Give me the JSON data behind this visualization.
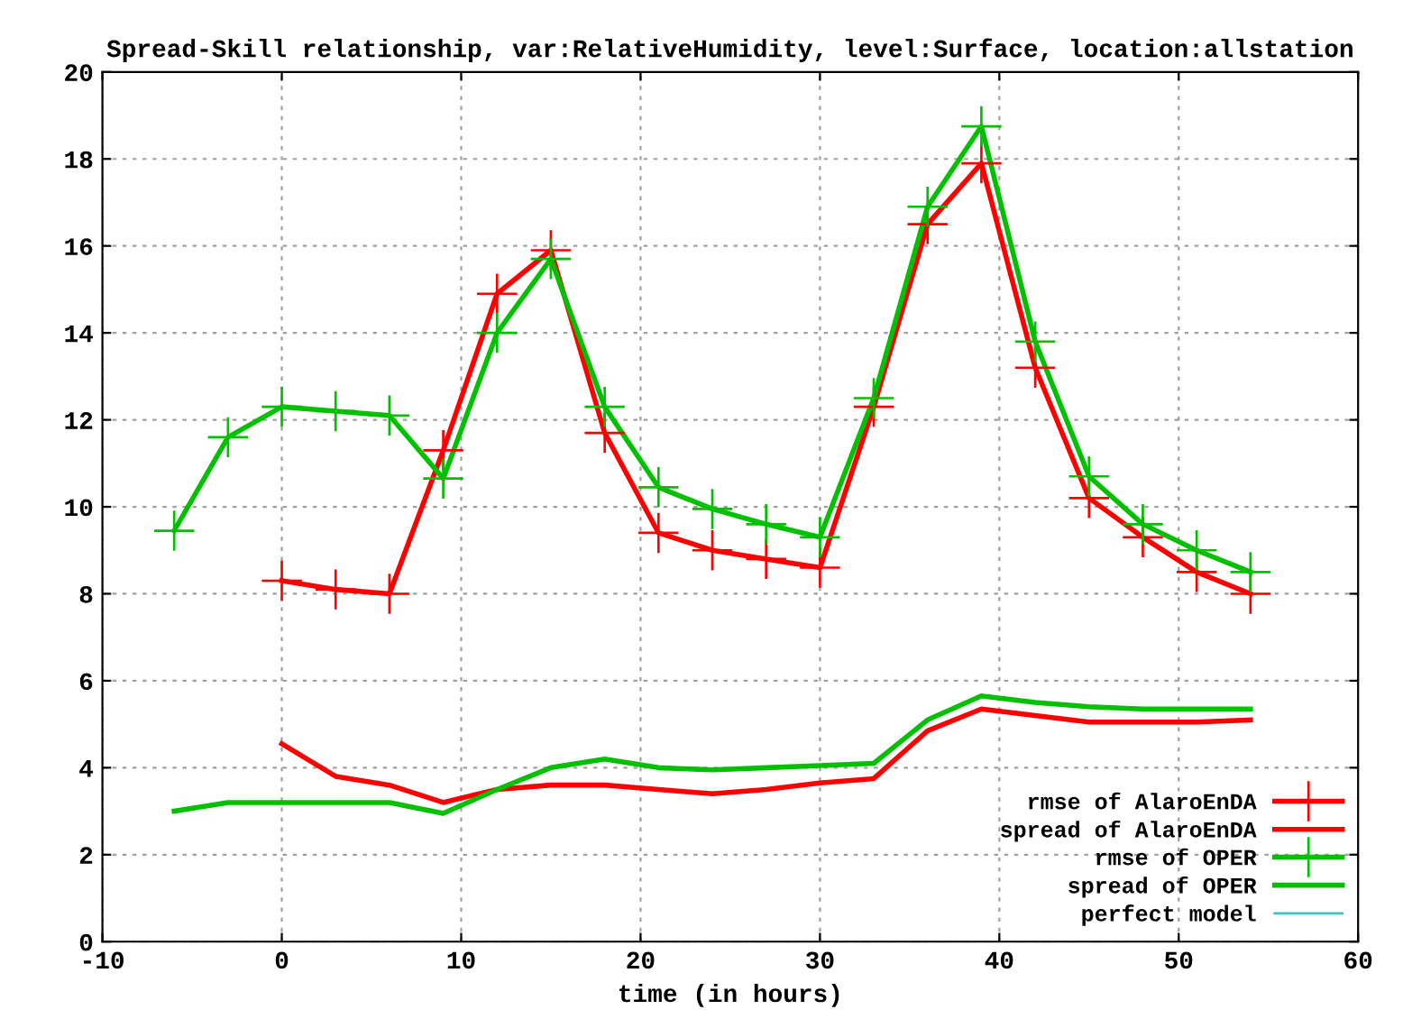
{
  "chart_data": {
    "type": "line",
    "title": "Spread-Skill relationship, var:RelativeHumidity, level:Surface, location:allstation",
    "xlabel": "time (in hours)",
    "xlim": [
      -10,
      60
    ],
    "xticks": [
      -10,
      0,
      10,
      20,
      30,
      40,
      50,
      60
    ],
    "ylim": [
      0,
      20
    ],
    "yticks": [
      0,
      2,
      4,
      6,
      8,
      10,
      12,
      14,
      16,
      18,
      20
    ],
    "grid": true,
    "legend": "bottom right",
    "line_style": "solid",
    "series": [
      {
        "name": "rmse of AlaroEnDA",
        "color": "#ff0000",
        "marker": "cross",
        "x": [
          0,
          3,
          6,
          9,
          12,
          15,
          18,
          21,
          24,
          27,
          30,
          33,
          36,
          39,
          42,
          45,
          48,
          51,
          54
        ],
        "values": [
          8.3,
          8.1,
          8.0,
          11.3,
          14.9,
          15.9,
          11.7,
          9.4,
          9.0,
          8.8,
          8.6,
          12.3,
          16.5,
          17.9,
          13.2,
          10.2,
          9.3,
          8.5,
          8.0
        ]
      },
      {
        "name": "spread of AlaroEnDA",
        "color": "#ff0000",
        "marker": "none",
        "x": [
          0,
          3,
          6,
          9,
          12,
          15,
          18,
          21,
          24,
          27,
          30,
          33,
          36,
          39,
          42,
          45,
          48,
          51,
          54
        ],
        "values": [
          4.55,
          3.8,
          3.6,
          3.2,
          3.5,
          3.6,
          3.6,
          3.5,
          3.4,
          3.5,
          3.65,
          3.75,
          4.85,
          5.35,
          5.2,
          5.05,
          5.05,
          5.05,
          5.1
        ]
      },
      {
        "name": "rmse of OPER",
        "color": "#00c000",
        "marker": "cross",
        "x": [
          -6,
          -3,
          0,
          3,
          6,
          9,
          12,
          15,
          18,
          21,
          24,
          27,
          30,
          33,
          36,
          39,
          42,
          45,
          48,
          51,
          54
        ],
        "values": [
          9.45,
          11.6,
          12.3,
          12.2,
          12.1,
          10.65,
          14.0,
          15.7,
          12.3,
          10.45,
          9.95,
          9.6,
          9.3,
          12.5,
          16.9,
          18.75,
          13.8,
          10.7,
          9.6,
          9.0,
          8.5
        ]
      },
      {
        "name": "spread of OPER",
        "color": "#00c000",
        "marker": "none",
        "x": [
          -6,
          -3,
          0,
          3,
          6,
          9,
          12,
          15,
          18,
          21,
          24,
          27,
          30,
          33,
          36,
          39,
          42,
          45,
          48,
          51,
          54
        ],
        "values": [
          3.0,
          3.2,
          3.2,
          3.2,
          3.2,
          2.95,
          3.5,
          4.0,
          4.2,
          4.0,
          3.95,
          4.0,
          4.05,
          4.1,
          5.1,
          5.65,
          5.5,
          5.4,
          5.35,
          5.35,
          5.35
        ]
      },
      {
        "name": "perfect model",
        "color": "#40c0c0",
        "marker": "none"
      }
    ]
  }
}
